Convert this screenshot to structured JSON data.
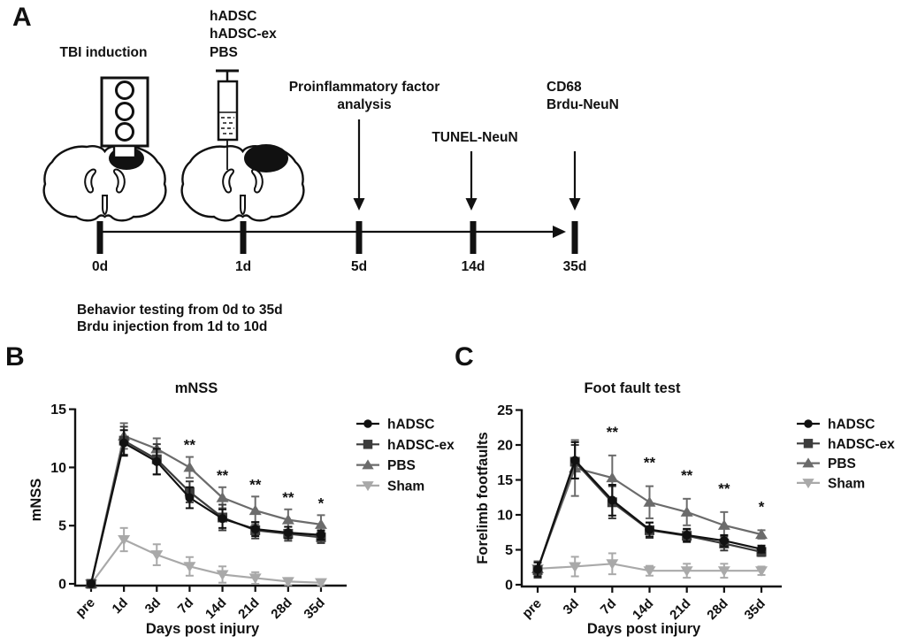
{
  "figure": {
    "panel_a_label": "A",
    "panel_b_label": "B",
    "panel_c_label": "C"
  },
  "panel_a": {
    "tbi_label": "TBI induction",
    "injection_lines": [
      "hADSC",
      "hADSC-ex",
      "PBS"
    ],
    "event_proinflammatory_line1": "Proinflammatory factor",
    "event_proinflammatory_line2": "analysis",
    "event_tunel": "TUNEL-NeuN",
    "event_cd68_line1": "CD68",
    "event_cd68_line2": "Brdu-NeuN",
    "timeline_labels": [
      "0d",
      "1d",
      "5d",
      "14d",
      "35d"
    ],
    "note_line1": "Behavior testing from 0d to 35d",
    "note_line2": "Brdu injection from 1d to 10d"
  },
  "chart_data": [
    {
      "panel": "B",
      "type": "line",
      "title": "mNSS",
      "ylabel": "mNSS",
      "xlabel": "Days post injury",
      "categories": [
        "pre",
        "1d",
        "3d",
        "7d",
        "14d",
        "21d",
        "28d",
        "35d"
      ],
      "ylim": [
        0,
        15
      ],
      "yticks": [
        0,
        5,
        10,
        15
      ],
      "grid": false,
      "legend_position": "right",
      "series": [
        {
          "name": "hADSC",
          "marker": "circle",
          "color": "#111111",
          "values": [
            0,
            12.1,
            10.5,
            7.4,
            5.6,
            4.7,
            4.4,
            4.2
          ],
          "errors": [
            0.2,
            1.1,
            1.1,
            0.9,
            0.8,
            0.6,
            0.5,
            0.4
          ]
        },
        {
          "name": "hADSC-ex",
          "marker": "square",
          "color": "#3c3c3c",
          "values": [
            0,
            12.3,
            10.7,
            7.9,
            5.7,
            4.6,
            4.3,
            4.0
          ],
          "errors": [
            0.2,
            1.2,
            1.3,
            0.9,
            1.1,
            0.7,
            0.6,
            0.5
          ]
        },
        {
          "name": "PBS",
          "marker": "triangle-up",
          "color": "#6b6b6b",
          "values": [
            0,
            12.7,
            11.6,
            10.0,
            7.4,
            6.3,
            5.5,
            5.1
          ],
          "errors": [
            0.2,
            1.1,
            0.9,
            0.9,
            0.9,
            1.2,
            0.9,
            0.8
          ]
        },
        {
          "name": "Sham",
          "marker": "triangle-down",
          "color": "#a9a9a9",
          "values": [
            0,
            3.8,
            2.5,
            1.5,
            0.8,
            0.5,
            0.2,
            0.1
          ],
          "errors": [
            0.2,
            1.0,
            0.9,
            0.8,
            0.7,
            0.5,
            0.3,
            0.2
          ]
        }
      ],
      "significance": [
        {
          "category": "7d",
          "label": "**"
        },
        {
          "category": "14d",
          "label": "**"
        },
        {
          "category": "21d",
          "label": "**"
        },
        {
          "category": "28d",
          "label": "**"
        },
        {
          "category": "35d",
          "label": "*"
        }
      ]
    },
    {
      "panel": "C",
      "type": "line",
      "title": "Foot fault test",
      "ylabel": "Forelimb footfaults",
      "xlabel": "Days post injury",
      "categories": [
        "pre",
        "3d",
        "7d",
        "14d",
        "21d",
        "28d",
        "35d"
      ],
      "ylim": [
        0,
        25
      ],
      "yticks": [
        0,
        5,
        10,
        15,
        20,
        25
      ],
      "grid": false,
      "legend_position": "right",
      "series": [
        {
          "name": "hADSC",
          "marker": "circle",
          "color": "#111111",
          "values": [
            2.2,
            17.8,
            12.1,
            7.9,
            7.1,
            6.3,
            5.1
          ],
          "errors": [
            1.0,
            2.6,
            2.2,
            1.0,
            0.9,
            0.8,
            0.5
          ]
        },
        {
          "name": "hADSC-ex",
          "marker": "square",
          "color": "#3c3c3c",
          "values": [
            2.1,
            17.6,
            11.8,
            7.8,
            7.0,
            5.9,
            4.7
          ],
          "errors": [
            1.1,
            2.4,
            2.3,
            1.1,
            0.9,
            1.0,
            0.6
          ]
        },
        {
          "name": "PBS",
          "marker": "triangle-up",
          "color": "#6b6b6b",
          "values": [
            2.3,
            16.7,
            15.3,
            11.8,
            10.4,
            8.5,
            7.2
          ],
          "errors": [
            1.0,
            4.0,
            3.2,
            2.3,
            1.9,
            1.9,
            0.6
          ]
        },
        {
          "name": "Sham",
          "marker": "triangle-down",
          "color": "#a9a9a9",
          "values": [
            2.3,
            2.6,
            3.0,
            2.0,
            2.0,
            2.0,
            2.0
          ],
          "errors": [
            1.1,
            1.4,
            1.5,
            0.7,
            1.0,
            1.0,
            0.6
          ]
        }
      ],
      "significance": [
        {
          "category": "7d",
          "label": "**"
        },
        {
          "category": "14d",
          "label": "**"
        },
        {
          "category": "21d",
          "label": "**"
        },
        {
          "category": "28d",
          "label": "**"
        },
        {
          "category": "35d",
          "label": "*"
        }
      ]
    }
  ]
}
